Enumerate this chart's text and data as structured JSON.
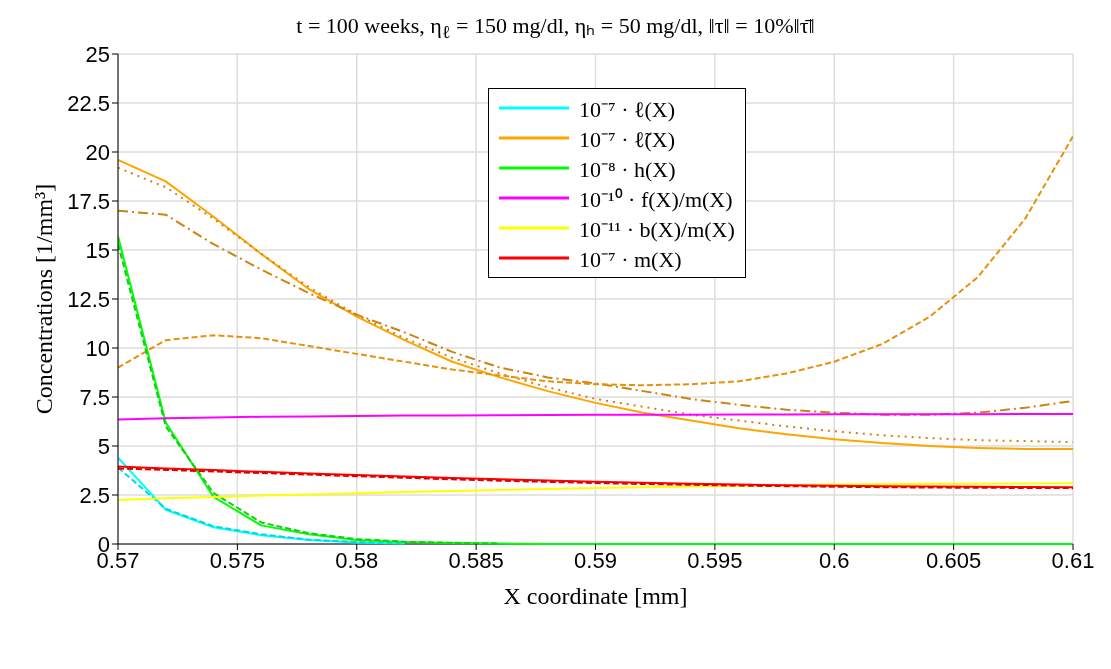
{
  "chart_data": {
    "type": "line",
    "title": "t = 100 weeks, η$_{ℓ}$ = 150 mg/dl, ηₕ = 50 mg/dl, ‖τ‖ = 10%‖τ̄‖",
    "xlabel": "X coordinate [mm]",
    "ylabel": "Concentrations [1/mm³]",
    "x": [
      0.57,
      0.572,
      0.574,
      0.576,
      0.578,
      0.58,
      0.582,
      0.584,
      0.586,
      0.588,
      0.59,
      0.592,
      0.594,
      0.596,
      0.598,
      0.6,
      0.602,
      0.604,
      0.606,
      0.608,
      0.61
    ],
    "xlim": [
      0.57,
      0.61
    ],
    "xticks": [
      0.57,
      0.575,
      0.58,
      0.585,
      0.59,
      0.595,
      0.6,
      0.605,
      0.61
    ],
    "ylim": [
      0,
      25
    ],
    "yticks": [
      0,
      2.5,
      5,
      7.5,
      10,
      12.5,
      15,
      17.5,
      20,
      22.5,
      25
    ],
    "grid": true,
    "legend": "top",
    "marker": "none",
    "series": [
      {
        "name": "10⁻⁷ · ℓ(X)",
        "color": "#00ffff",
        "line_style": "solid",
        "values": [
          4.4,
          1.75,
          0.85,
          0.45,
          0.2,
          0.08,
          0.03,
          null,
          null,
          null,
          null,
          null,
          null,
          null,
          null,
          null,
          null,
          null,
          null,
          null,
          null
        ]
      },
      {
        "color": "#00d8e0",
        "line_style": "dashed",
        "values": [
          3.9,
          1.8,
          0.9,
          0.5,
          0.22,
          0.1,
          0.04,
          null,
          null,
          null,
          null,
          null,
          null,
          null,
          null,
          null,
          null,
          null,
          null,
          null,
          null
        ]
      },
      {
        "name": "10⁻⁷ · ℓ̃(X)",
        "color": "#ffa500",
        "line_style": "solid",
        "values": [
          19.6,
          18.5,
          16.7,
          14.8,
          13,
          11.6,
          10.4,
          9.3,
          8.5,
          7.8,
          7.2,
          6.7,
          6.3,
          5.9,
          5.6,
          5.35,
          5.15,
          5,
          4.9,
          4.85,
          4.85
        ]
      },
      {
        "color": "#cc8410",
        "line_style": "dotted",
        "values": [
          19.2,
          18.2,
          16.6,
          14.8,
          13.1,
          11.7,
          10.5,
          9.5,
          8.7,
          8,
          7.4,
          7,
          6.6,
          6.3,
          6,
          5.75,
          5.55,
          5.4,
          5.3,
          5.25,
          5.2
        ]
      },
      {
        "color": "#cc8410",
        "line_style": "dashdot",
        "values": [
          17,
          16.8,
          15.3,
          14,
          12.8,
          11.7,
          10.8,
          9.8,
          9,
          8.5,
          8.2,
          7.8,
          7.4,
          7.1,
          6.85,
          6.7,
          6.6,
          6.6,
          6.7,
          6.95,
          7.3
        ]
      },
      {
        "color": "#e8900a",
        "line_style": "dashed",
        "values": [
          9,
          10.4,
          10.65,
          10.5,
          10.1,
          9.7,
          9.3,
          8.9,
          8.6,
          8.3,
          8.15,
          8.1,
          8.15,
          8.3,
          8.7,
          9.3,
          10.2,
          11.6,
          13.6,
          16.6,
          20.8
        ]
      },
      {
        "name": "10⁻⁸ · h(X)",
        "color": "#00ff00",
        "line_style": "solid",
        "values": [
          15.7,
          6.2,
          2.4,
          0.95,
          0.5,
          0.2,
          0.1,
          0.05,
          0.02,
          0,
          0,
          0,
          0,
          0,
          0,
          0,
          0,
          0,
          0,
          0,
          0
        ]
      },
      {
        "color": "#10d010",
        "line_style": "dashed",
        "values": [
          15.3,
          6,
          2.6,
          1.1,
          0.55,
          0.25,
          0.12,
          0.06,
          0.03,
          null,
          null,
          null,
          null,
          null,
          null,
          null,
          null,
          null,
          null,
          null,
          null
        ]
      },
      {
        "name": "10⁻¹⁰ · f(X)/m(X)",
        "color": "#ff00ff",
        "line_style": "solid",
        "values": [
          6.35,
          6.42,
          6.46,
          6.49,
          6.51,
          6.53,
          6.55,
          6.56,
          6.57,
          6.58,
          6.59,
          6.6,
          6.6,
          6.61,
          6.61,
          6.62,
          6.62,
          6.62,
          6.62,
          6.63,
          6.63
        ]
      },
      {
        "name": "10⁻¹¹ · b(X)/m(X)",
        "color": "#ffff00",
        "line_style": "solid",
        "values": [
          2.25,
          2.33,
          2.4,
          2.47,
          2.53,
          2.59,
          2.65,
          2.71,
          2.76,
          2.81,
          2.86,
          2.9,
          2.94,
          2.97,
          3,
          3.03,
          3.05,
          3.07,
          3.08,
          3.09,
          3.1
        ]
      },
      {
        "name": "10⁻⁷ · m(X)",
        "color": "#ff0000",
        "line_style": "solid",
        "values": [
          3.95,
          3.85,
          3.77,
          3.68,
          3.6,
          3.52,
          3.44,
          3.37,
          3.3,
          3.24,
          3.18,
          3.12,
          3.07,
          3.03,
          3,
          2.97,
          2.95,
          2.93,
          2.92,
          2.91,
          2.9
        ]
      },
      {
        "color": "#e00000",
        "line_style": "dashed",
        "values": [
          3.85,
          3.78,
          3.7,
          3.62,
          3.54,
          3.46,
          3.38,
          3.3,
          3.23,
          3.17,
          3.11,
          3.06,
          3.02,
          2.98,
          2.95,
          2.92,
          2.9,
          2.88,
          2.87,
          2.86,
          2.85
        ]
      }
    ]
  }
}
